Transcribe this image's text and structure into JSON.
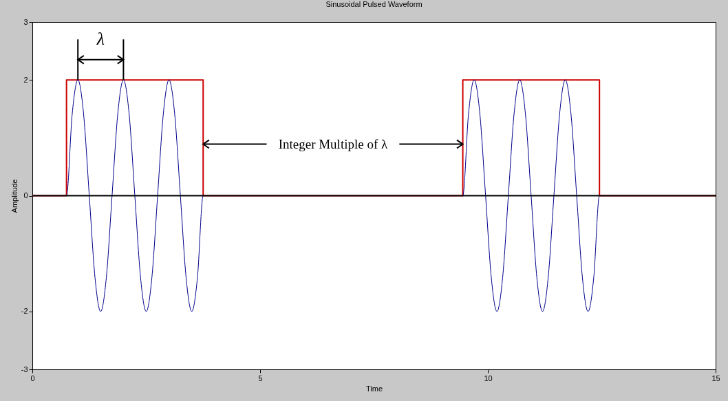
{
  "chart_data": {
    "type": "line",
    "title": "Sinusoidal Pulsed Waveform",
    "xlabel": "Time",
    "ylabel": "Amplitude",
    "xlim": [
      0,
      15
    ],
    "xticks": [
      0,
      5,
      10,
      15
    ],
    "ylim": [
      -3,
      3
    ],
    "yticks": [
      -3,
      -2,
      0,
      2,
      3
    ],
    "grid": false,
    "legend": false,
    "marker": "none",
    "line_style": "solid",
    "series": [
      {
        "color": "#cc0000",
        "x": [
          0,
          0.75,
          0.75,
          3.75,
          3.75,
          9.45,
          9.45,
          12.45,
          12.45,
          15
        ],
        "values": [
          0,
          0,
          2,
          2,
          0,
          0,
          2,
          2,
          0,
          0
        ]
      },
      {
        "color": "#00008b",
        "x": [
          0,
          0.75,
          0.875,
          1,
          1.125,
          1.25,
          1.375,
          1.5,
          1.625,
          1.75,
          1.875,
          2,
          2.125,
          2.25,
          2.375,
          2.5,
          2.625,
          2.75,
          2.875,
          3,
          3.125,
          3.25,
          3.375,
          3.5,
          3.625,
          3.75,
          9.45,
          9.575,
          9.7,
          9.825,
          9.95,
          10.075,
          10.2,
          10.325,
          10.45,
          10.575,
          10.7,
          10.825,
          10.95,
          11.075,
          11.2,
          11.325,
          11.45,
          11.575,
          11.7,
          11.825,
          11.95,
          12.075,
          12.2,
          12.325,
          12.45,
          15
        ],
        "values": [
          0,
          0,
          1.41,
          2,
          1.41,
          0,
          -1.41,
          -2,
          -1.41,
          0,
          1.41,
          2,
          1.41,
          0,
          -1.41,
          -2,
          -1.41,
          0,
          1.41,
          2,
          1.41,
          0,
          -1.41,
          -2,
          -1.41,
          0,
          0,
          1.41,
          2,
          1.41,
          0,
          -1.41,
          -2,
          -1.41,
          0,
          1.41,
          2,
          1.41,
          0,
          -1.41,
          -2,
          -1.41,
          0,
          1.41,
          2,
          1.41,
          0,
          -1.41,
          -2,
          -1.41,
          0,
          0
        ]
      }
    ],
    "ref_lines": [
      {
        "axis": "y",
        "value": 0,
        "color": "#000000"
      }
    ],
    "annotations": [
      {
        "text": "λ",
        "x": 1,
        "y": 2
      },
      {
        "text": "Integer Multiple of λ",
        "x": 9.45,
        "y": 0.89
      }
    ]
  }
}
